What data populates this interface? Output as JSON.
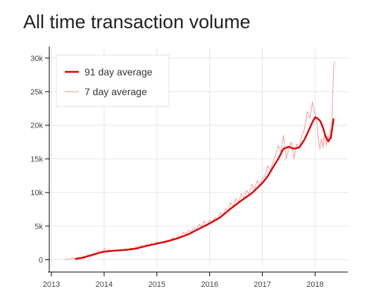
{
  "title": "All time transaction volume",
  "colors": {
    "line_91": "#dd0000",
    "line_7": "#f5a3a3",
    "grid": "#e6e6e6",
    "axis": "#000000"
  },
  "chart_data": {
    "type": "line",
    "title": "All time transaction volume",
    "xlabel": "",
    "ylabel": "",
    "xlim": [
      2012.96,
      2018.62
    ],
    "ylim": [
      -1200,
      31500
    ],
    "x_ticks": [
      2013,
      2014,
      2015,
      2016,
      2017,
      2018
    ],
    "x_tick_labels": [
      "2013",
      "2014",
      "2015",
      "2016",
      "2017",
      "2018"
    ],
    "y_ticks": [
      0,
      5000,
      10000,
      15000,
      20000,
      25000,
      30000
    ],
    "y_tick_labels": [
      "0",
      "5k",
      "10k",
      "15k",
      "20k",
      "25k",
      "30k"
    ],
    "grid": true,
    "legend_position": "top-left",
    "legend": [
      "91 day average",
      "7 day average"
    ],
    "series": [
      {
        "name": "91 day average",
        "x": [
          2013.45,
          2013.6,
          2013.75,
          2013.9,
          2014.0,
          2014.2,
          2014.4,
          2014.6,
          2014.8,
          2015.0,
          2015.2,
          2015.4,
          2015.6,
          2015.8,
          2016.0,
          2016.2,
          2016.4,
          2016.6,
          2016.8,
          2017.0,
          2017.1,
          2017.2,
          2017.3,
          2017.4,
          2017.5,
          2017.6,
          2017.7,
          2017.8,
          2017.9,
          2017.95,
          2018.0,
          2018.05,
          2018.1,
          2018.15,
          2018.2,
          2018.25,
          2018.3,
          2018.35
        ],
        "y": [
          100,
          300,
          650,
          1000,
          1200,
          1350,
          1450,
          1650,
          2050,
          2400,
          2750,
          3200,
          3800,
          4600,
          5400,
          6300,
          7600,
          8800,
          9900,
          11400,
          12400,
          13700,
          15000,
          16500,
          16800,
          16500,
          16700,
          17900,
          19600,
          20500,
          21200,
          21000,
          20600,
          19600,
          18300,
          17600,
          18200,
          21000
        ]
      },
      {
        "name": "7 day average",
        "x": [
          2013.25,
          2013.3,
          2013.35,
          2013.4,
          2013.45,
          2013.5,
          2013.55,
          2013.6,
          2013.65,
          2013.7,
          2013.75,
          2013.8,
          2013.85,
          2013.9,
          2013.95,
          2014.0,
          2014.05,
          2014.1,
          2014.15,
          2014.2,
          2014.25,
          2014.3,
          2014.35,
          2014.4,
          2014.45,
          2014.5,
          2014.55,
          2014.6,
          2014.65,
          2014.7,
          2014.75,
          2014.8,
          2014.85,
          2014.9,
          2014.95,
          2015.0,
          2015.05,
          2015.1,
          2015.15,
          2015.2,
          2015.25,
          2015.3,
          2015.35,
          2015.4,
          2015.45,
          2015.5,
          2015.55,
          2015.6,
          2015.65,
          2015.7,
          2015.75,
          2015.8,
          2015.85,
          2015.9,
          2015.95,
          2016.0,
          2016.05,
          2016.1,
          2016.15,
          2016.2,
          2016.25,
          2016.3,
          2016.35,
          2016.4,
          2016.45,
          2016.5,
          2016.55,
          2016.6,
          2016.65,
          2016.7,
          2016.75,
          2016.8,
          2016.85,
          2016.9,
          2016.95,
          2017.0,
          2017.05,
          2017.1,
          2017.15,
          2017.2,
          2017.25,
          2017.3,
          2017.35,
          2017.4,
          2017.45,
          2017.5,
          2017.55,
          2017.6,
          2017.65,
          2017.7,
          2017.75,
          2017.8,
          2017.85,
          2017.9,
          2017.95,
          2018.0,
          2018.03,
          2018.06,
          2018.09,
          2018.12,
          2018.15,
          2018.18,
          2018.21,
          2018.24,
          2018.27,
          2018.29,
          2018.31,
          2018.33,
          2018.35,
          2018.37
        ],
        "y": [
          0,
          150,
          50,
          300,
          100,
          350,
          250,
          550,
          450,
          800,
          650,
          1000,
          900,
          1400,
          1100,
          1700,
          1300,
          1500,
          1250,
          1450,
          1300,
          1550,
          1400,
          1650,
          1450,
          1750,
          1600,
          2000,
          1800,
          2200,
          1950,
          2300,
          2050,
          2500,
          2200,
          2700,
          2400,
          2600,
          2500,
          2900,
          2700,
          3300,
          3000,
          3600,
          3400,
          4100,
          3700,
          4400,
          4100,
          4800,
          4500,
          5300,
          4900,
          5800,
          5000,
          5900,
          5500,
          6300,
          5900,
          7000,
          6500,
          7600,
          7300,
          8500,
          7900,
          9100,
          8600,
          9800,
          9200,
          10300,
          9800,
          11200,
          10500,
          11800,
          11000,
          12000,
          12500,
          14000,
          13200,
          14500,
          15500,
          17000,
          16000,
          18500,
          15000,
          16500,
          17500,
          15000,
          17200,
          16600,
          18500,
          19500,
          22000,
          21000,
          23500,
          21500,
          20500,
          18000,
          16500,
          18000,
          16700,
          19000,
          17000,
          18500,
          17500,
          19500,
          18000,
          24000,
          28500,
          29500
        ]
      }
    ]
  }
}
